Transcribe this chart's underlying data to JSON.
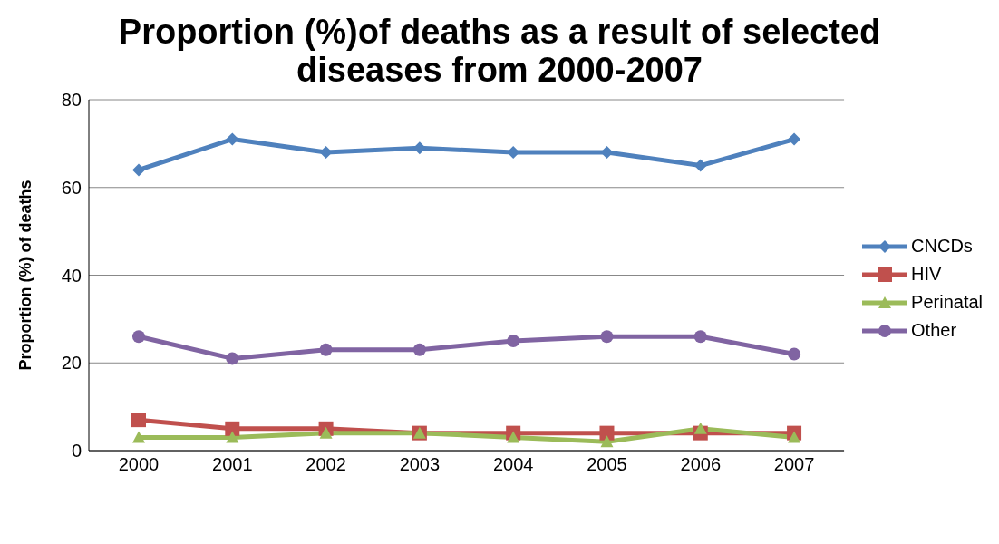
{
  "chart_data": {
    "type": "line",
    "title": "Proportion (%)of deaths as a result of selected diseases from 2000-2007",
    "ylabel": "Proportion (%) of deaths",
    "categories": [
      "2000",
      "2001",
      "2002",
      "2003",
      "2004",
      "2005",
      "2006",
      "2007"
    ],
    "series": [
      {
        "name": "CNCDs",
        "color": "#4f81bd",
        "marker": "diamond",
        "values": [
          64,
          71,
          68,
          69,
          68,
          68,
          65,
          71
        ]
      },
      {
        "name": "HIV",
        "color": "#c0504d",
        "marker": "square",
        "values": [
          7,
          5,
          5,
          4,
          4,
          4,
          4,
          4
        ]
      },
      {
        "name": "Perinatal",
        "color": "#9bbb59",
        "marker": "triangle",
        "values": [
          3,
          3,
          4,
          4,
          3,
          2,
          5,
          3
        ]
      },
      {
        "name": "Other",
        "color": "#8064a2",
        "marker": "circle",
        "values": [
          26,
          21,
          23,
          23,
          25,
          26,
          26,
          22
        ]
      }
    ],
    "ylim": [
      0,
      80
    ],
    "yticks": [
      0,
      20,
      40,
      60,
      80
    ],
    "grid": "y",
    "legend": "right",
    "line_style": "solid"
  }
}
